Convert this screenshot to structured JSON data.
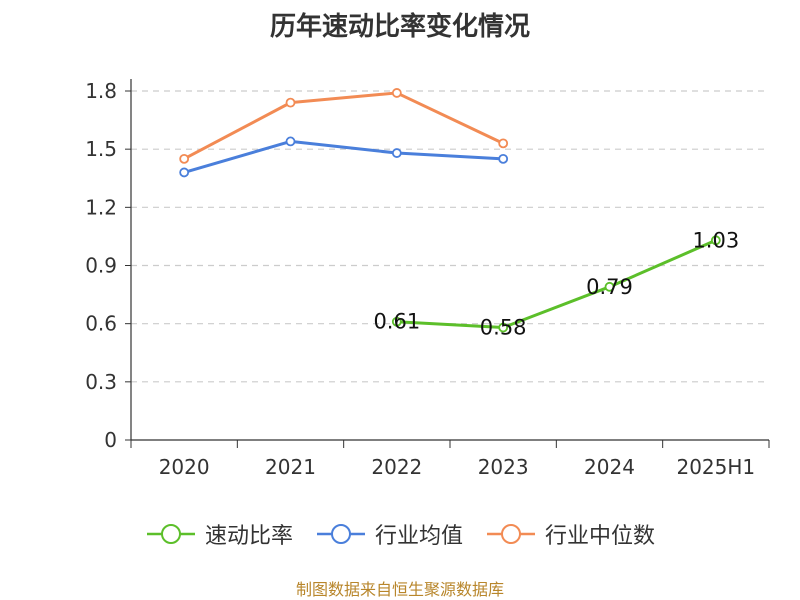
{
  "chart_data": {
    "type": "line",
    "title": "历年速动比率变化情况",
    "categories": [
      "2020",
      "2021",
      "2022",
      "2023",
      "2024",
      "2025H1"
    ],
    "y_ticks": [
      "0",
      "0.3",
      "0.6",
      "0.9",
      "1.2",
      "1.5",
      "1.8"
    ],
    "ylim": [
      0,
      1.8
    ],
    "grid": true,
    "legend_position": "bottom",
    "series": [
      {
        "name": "速动比率",
        "color": "#5cbf2a",
        "values": [
          null,
          null,
          0.61,
          0.58,
          0.79,
          1.03
        ],
        "show_labels": true
      },
      {
        "name": "行业均值",
        "color": "#4a7fdb",
        "values": [
          1.38,
          1.54,
          1.48,
          1.45,
          null,
          null
        ],
        "show_labels": false
      },
      {
        "name": "行业中位数",
        "color": "#f28b54",
        "values": [
          1.45,
          1.74,
          1.79,
          1.53,
          null,
          null
        ],
        "show_labels": false
      }
    ]
  },
  "source": "制图数据来自恒生聚源数据库"
}
